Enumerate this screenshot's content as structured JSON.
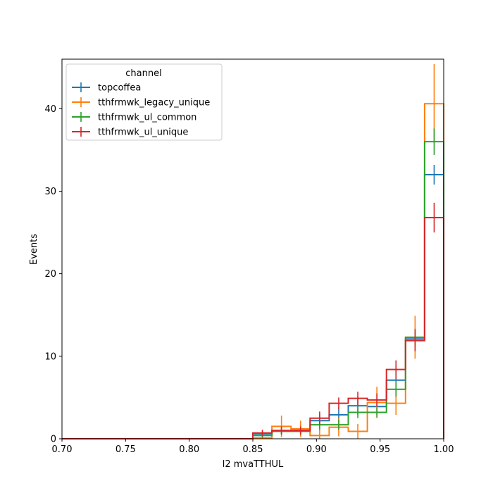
{
  "chart_data": {
    "type": "histogram-step",
    "xlabel": "l2 mvaTTHUL",
    "ylabel": "Events",
    "xlim": [
      0.7,
      1.0
    ],
    "ylim": [
      0,
      46
    ],
    "xticks": [
      "0.70",
      "0.75",
      "0.80",
      "0.85",
      "0.90",
      "0.95",
      "1.00"
    ],
    "yticks": [
      "0",
      "10",
      "20",
      "30",
      "40"
    ],
    "grid": false,
    "legend": {
      "title": "channel",
      "placement": "top-left"
    },
    "bin_edges": [
      0.7,
      0.715,
      0.73,
      0.745,
      0.76,
      0.775,
      0.79,
      0.805,
      0.82,
      0.835,
      0.85,
      0.865,
      0.88,
      0.895,
      0.91,
      0.925,
      0.94,
      0.955,
      0.97,
      0.985,
      1.0
    ],
    "series": [
      {
        "name": "topcoffea",
        "color": "#1f77b4",
        "values": [
          0,
          0,
          0,
          0,
          0,
          0,
          0,
          0,
          0,
          0,
          0.6,
          1.0,
          1.0,
          2.2,
          2.9,
          4.0,
          3.9,
          7.1,
          12.1,
          32.0
        ],
        "errors": [
          0,
          0,
          0,
          0,
          0,
          0,
          0,
          0,
          0,
          0,
          0.3,
          0.5,
          0.5,
          0.8,
          0.9,
          1.1,
          1.0,
          1.4,
          1.3,
          1.2
        ]
      },
      {
        "name": "tthfrmwk_legacy_unique",
        "color": "#ff7f0e",
        "values": [
          0,
          0,
          0,
          0,
          0,
          0,
          0,
          0,
          0,
          0,
          0.1,
          1.5,
          1.2,
          0.4,
          1.4,
          0.9,
          4.4,
          4.3,
          12.3,
          40.6
        ],
        "errors": [
          0,
          0,
          0,
          0,
          0,
          0,
          0,
          0,
          0,
          0,
          0.3,
          1.3,
          1.0,
          0.8,
          1.1,
          0.9,
          1.9,
          1.4,
          2.6,
          4.8
        ]
      },
      {
        "name": "tthfrmwk_ul_common",
        "color": "#2ca02c",
        "values": [
          0,
          0,
          0,
          0,
          0,
          0,
          0,
          0,
          0,
          0,
          0.4,
          0.9,
          0.9,
          1.7,
          1.7,
          3.2,
          3.2,
          6.0,
          12.3,
          36.0
        ],
        "errors": [
          0,
          0,
          0,
          0,
          0,
          0,
          0,
          0,
          0,
          0,
          0.3,
          0.4,
          0.4,
          0.6,
          0.6,
          0.7,
          0.6,
          0.9,
          1.0,
          1.6
        ]
      },
      {
        "name": "tthfrmwk_ul_unique",
        "color": "#d62728",
        "values": [
          0,
          0,
          0,
          0,
          0,
          0,
          0,
          0,
          0,
          0,
          0.7,
          1.0,
          1.0,
          2.5,
          4.3,
          4.9,
          4.7,
          8.4,
          11.9,
          26.8
        ],
        "errors": [
          0,
          0,
          0,
          0,
          0,
          0,
          0,
          0,
          0,
          0,
          0.4,
          0.5,
          0.5,
          0.8,
          0.7,
          0.8,
          0.8,
          1.1,
          1.3,
          1.8
        ]
      }
    ]
  }
}
